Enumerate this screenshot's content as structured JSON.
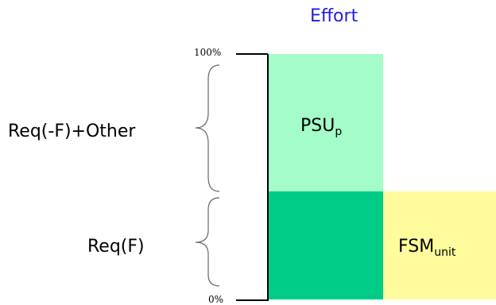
{
  "title": "Effort",
  "ticks": {
    "top": "100%",
    "bottom": "0%"
  },
  "groups": [
    {
      "label": "Req(-F)+Other"
    },
    {
      "label": "Req(F)"
    }
  ],
  "blocks": [
    {
      "base": "PSU",
      "subscript": "p",
      "color": "#a3fcc9"
    },
    {
      "base": "",
      "subscript": "",
      "color": "#00cc88"
    },
    {
      "base": "FSM",
      "subscript": "unit",
      "color": "#fefc9c"
    }
  ]
}
